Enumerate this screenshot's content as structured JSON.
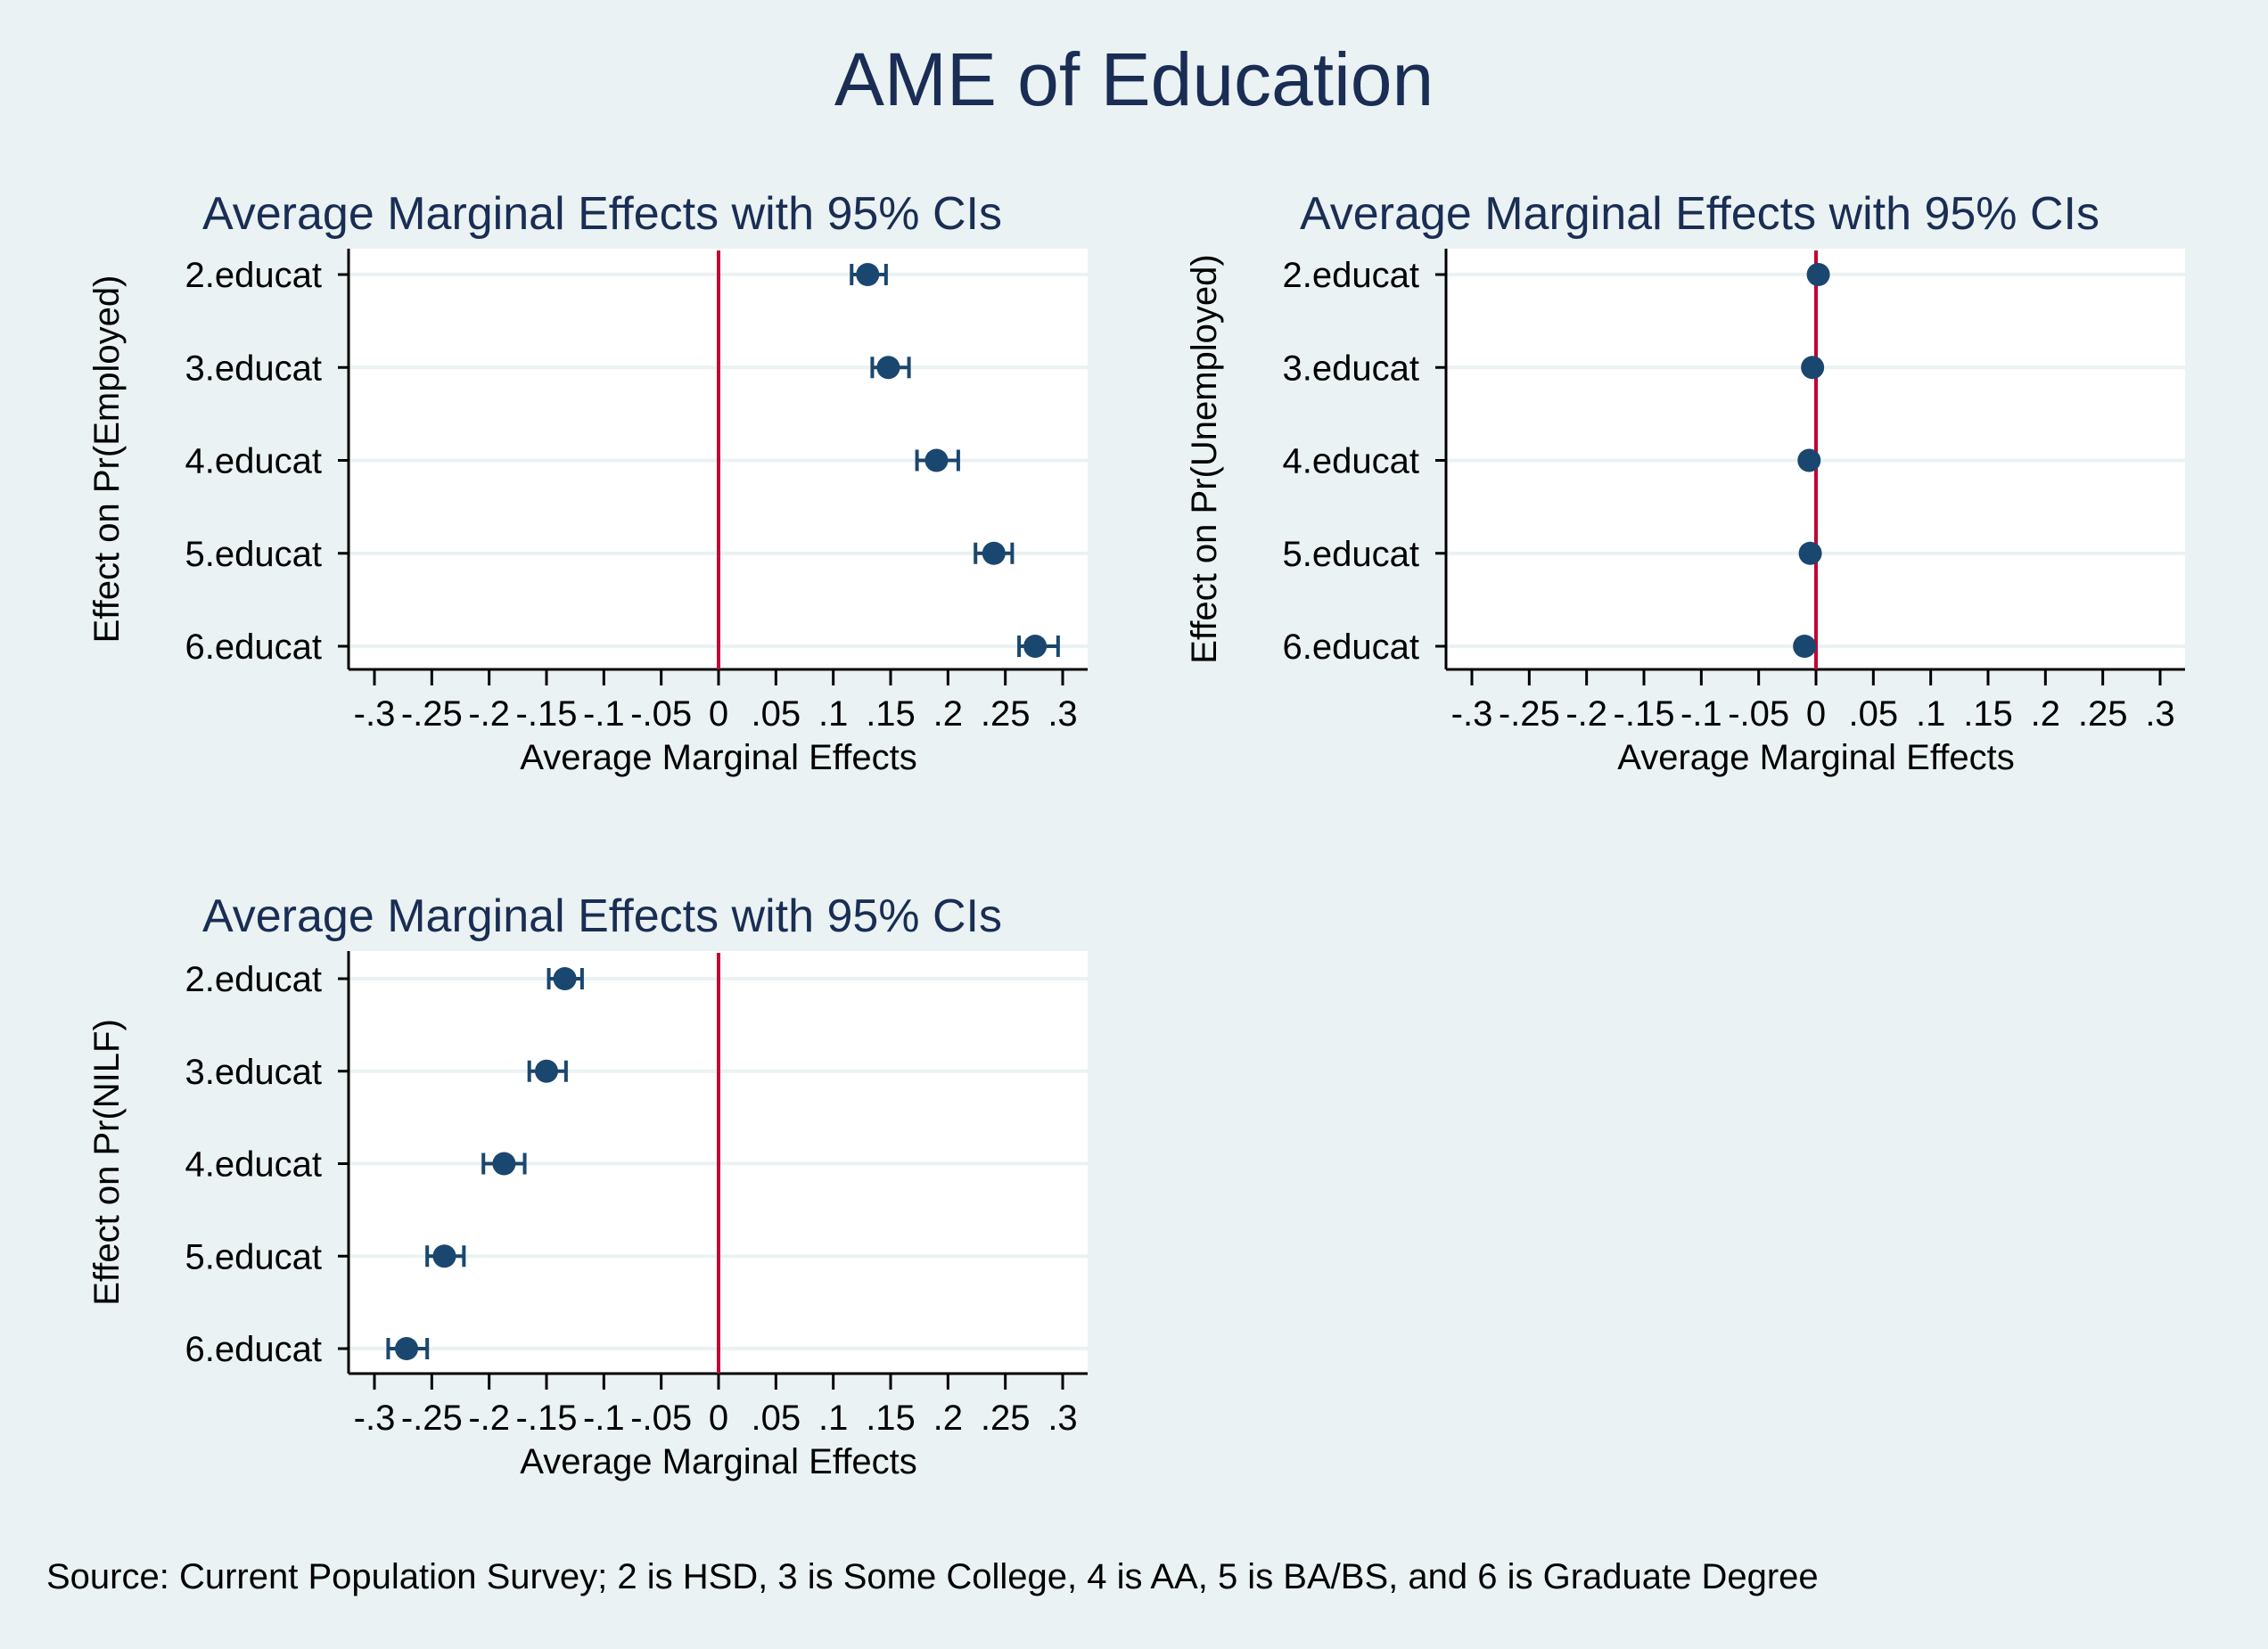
{
  "title": "AME of Education",
  "note": "Source: Current Population Survey; 2 is HSD, 3 is Some College, 4 is AA, 5 is BA/BS, and 6 is Graduate Degree",
  "colors": {
    "background": "#eaf2f3",
    "title": "#1a2d54",
    "marker": "#1a476f",
    "reference_line": "#c10534",
    "grid": "#eaf2f3"
  },
  "chart_data": [
    {
      "type": "scatter",
      "title": "Average Marginal Effects with 95% CIs",
      "xlabel": "Average Marginal Effects",
      "ylabel": "Effect on Pr(Employed)",
      "xlim": [
        -0.3,
        0.3
      ],
      "xticks": [
        -0.3,
        -0.25,
        -0.2,
        -0.15,
        -0.1,
        -0.05,
        0,
        0.05,
        0.1,
        0.15,
        0.2,
        0.25,
        0.3
      ],
      "xtick_labels": [
        "-.3",
        "-.25",
        "-.2",
        "-.15",
        "-.1",
        "-.05",
        "0",
        ".05",
        ".1",
        ".15",
        ".2",
        ".25",
        ".3"
      ],
      "reference_x": 0,
      "categories": [
        "2.educat",
        "3.educat",
        "4.educat",
        "5.educat",
        "6.educat"
      ],
      "values": [
        0.13,
        0.148,
        0.19,
        0.24,
        0.276
      ],
      "ci_low": [
        0.116,
        0.134,
        0.173,
        0.224,
        0.262
      ],
      "ci_high": [
        0.146,
        0.166,
        0.209,
        0.256,
        0.296
      ],
      "grid": true
    },
    {
      "type": "scatter",
      "title": "Average Marginal Effects with 95% CIs",
      "xlabel": "Average Marginal Effects",
      "ylabel": "Effect on Pr(Unemployed)",
      "xlim": [
        -0.3,
        0.3
      ],
      "xticks": [
        -0.3,
        -0.25,
        -0.2,
        -0.15,
        -0.1,
        -0.05,
        0,
        0.05,
        0.1,
        0.15,
        0.2,
        0.25,
        0.3
      ],
      "xtick_labels": [
        "-.3",
        "-.25",
        "-.2",
        "-.15",
        "-.1",
        "-.05",
        "0",
        ".05",
        ".1",
        ".15",
        ".2",
        ".25",
        ".3"
      ],
      "reference_x": 0,
      "categories": [
        "2.educat",
        "3.educat",
        "4.educat",
        "5.educat",
        "6.educat"
      ],
      "values": [
        0.002,
        -0.003,
        -0.006,
        -0.005,
        -0.01
      ],
      "ci_low": [
        0.0,
        -0.005,
        -0.008,
        -0.007,
        -0.012
      ],
      "ci_high": [
        0.004,
        -0.001,
        -0.004,
        -0.003,
        -0.008
      ],
      "grid": true
    },
    {
      "type": "scatter",
      "title": "Average Marginal Effects with 95% CIs",
      "xlabel": "Average Marginal Effects",
      "ylabel": "Effect on Pr(NILF)",
      "xlim": [
        -0.3,
        0.3
      ],
      "xticks": [
        -0.3,
        -0.25,
        -0.2,
        -0.15,
        -0.1,
        -0.05,
        0,
        0.05,
        0.1,
        0.15,
        0.2,
        0.25,
        0.3
      ],
      "xtick_labels": [
        "-.3",
        "-.25",
        "-.2",
        "-.15",
        "-.1",
        "-.05",
        "0",
        ".05",
        ".1",
        ".15",
        ".2",
        ".25",
        ".3"
      ],
      "reference_x": 0,
      "categories": [
        "2.educat",
        "3.educat",
        "4.educat",
        "5.educat",
        "6.educat"
      ],
      "values": [
        -0.134,
        -0.15,
        -0.187,
        -0.239,
        -0.272
      ],
      "ci_low": [
        -0.148,
        -0.165,
        -0.205,
        -0.254,
        -0.288
      ],
      "ci_high": [
        -0.119,
        -0.133,
        -0.169,
        -0.222,
        -0.254
      ],
      "grid": true
    }
  ]
}
